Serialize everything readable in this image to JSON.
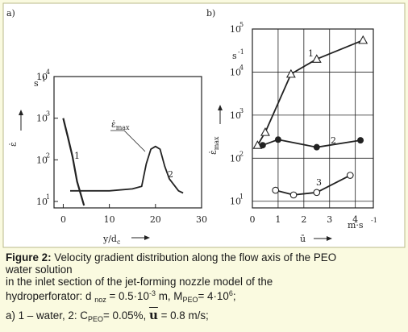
{
  "panel_a": {
    "label": "a)",
    "y_unit": "s",
    "y_unit_exp": "-1",
    "y_axis_symbol": "ε̇",
    "x_label": "y/d",
    "x_label_sub": "c",
    "x_ticks": [
      "0",
      "10",
      "20",
      "30"
    ],
    "y_ticks": [
      {
        "base": "10",
        "exp": "1"
      },
      {
        "base": "10",
        "exp": "2"
      },
      {
        "base": "10",
        "exp": "3"
      },
      {
        "base": "10",
        "exp": "4"
      }
    ],
    "annotation": "ε̇",
    "annotation_sub": "max",
    "curve_labels": [
      "1",
      "2"
    ]
  },
  "panel_b": {
    "label": "b)",
    "y_unit": "s",
    "y_unit_exp": "-1",
    "y_axis_symbol": "ε̇",
    "y_axis_sub": "max",
    "x_label": "ū",
    "x_unit": "m·s",
    "x_unit_exp": "-1",
    "x_ticks": [
      "0",
      "1",
      "2",
      "3",
      "4"
    ],
    "y_ticks": [
      {
        "base": "10",
        "exp": "1"
      },
      {
        "base": "10",
        "exp": "2"
      },
      {
        "base": "10",
        "exp": "3"
      },
      {
        "base": "10",
        "exp": "4"
      },
      {
        "base": "10",
        "exp": "5"
      }
    ],
    "curve_labels": [
      "1",
      "2",
      "3"
    ]
  },
  "chart_data": [
    {
      "type": "line",
      "title": "",
      "xlabel": "y/dc",
      "ylabel": "ε̇, s-1",
      "yscale": "log",
      "xlim": [
        -2,
        30
      ],
      "ylim": [
        7,
        10000
      ],
      "grid": false,
      "series": [
        {
          "name": "1",
          "x": [
            0,
            1,
            2,
            3,
            4.5
          ],
          "y": [
            1000,
            350,
            120,
            30,
            8
          ]
        },
        {
          "name": "2",
          "x": [
            1.5,
            5,
            10,
            15,
            17,
            18,
            19,
            20,
            21,
            22,
            23,
            25,
            26
          ],
          "y": [
            18,
            18,
            18,
            20,
            23,
            80,
            180,
            210,
            180,
            70,
            35,
            18,
            16
          ]
        }
      ]
    },
    {
      "type": "line",
      "title": "",
      "xlabel": "ū, m·s-1",
      "ylabel": "ε̇max, s-1",
      "yscale": "log",
      "xlim": [
        0,
        4.7
      ],
      "ylim": [
        7,
        100000
      ],
      "grid": true,
      "series": [
        {
          "name": "1",
          "x": [
            0.2,
            0.5,
            1.5,
            2.5,
            4.3
          ],
          "y": [
            200,
            400,
            9000,
            20000,
            55000
          ],
          "marker": "triangle"
        },
        {
          "name": "2",
          "x": [
            0.4,
            1.0,
            2.5,
            4.2
          ],
          "y": [
            200,
            270,
            180,
            260
          ],
          "marker": "filled-circle"
        },
        {
          "name": "3",
          "x": [
            0.9,
            1.6,
            2.5,
            3.8
          ],
          "y": [
            18,
            14,
            16,
            40
          ],
          "marker": "open-circle"
        }
      ]
    }
  ],
  "caption": {
    "title": "Figure 2:",
    "line1": "Velocity gradient distribution along the flow axis of the PEO",
    "line2": "water solution",
    "line3": "in the inlet section of the jet-forming nozzle model of the",
    "line4_pre": "hydroperforator: d",
    "line4_sub1": "noz",
    "line4_mid": "= 0.5·10",
    "line4_sup1": "-3",
    "line4_mid2": " m, M",
    "line4_sub2": "PEO",
    "line4_mid3": "= 4·10",
    "line4_sup2": "6",
    "line4_end": ";",
    "line5_pre": "a) 1 – water, 2: C",
    "line5_sub": "PEO",
    "line5_mid": "= 0.05%,",
    "line5_u": "u",
    "line5_end": "= 0.8 m/s;"
  },
  "colors": {
    "background": "#fafae0",
    "figure_bg": "#ffffff",
    "border": "#b9b98a",
    "ink": "#222222"
  }
}
